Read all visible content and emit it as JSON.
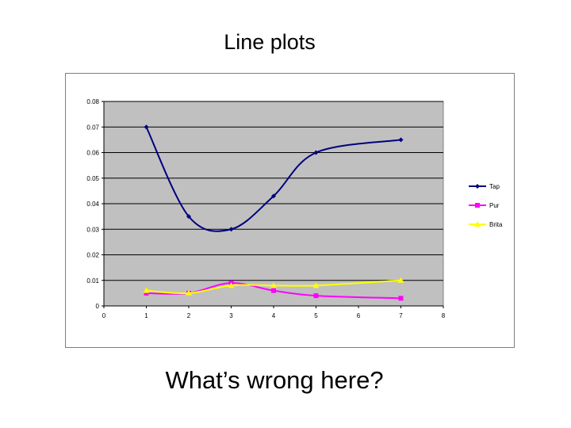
{
  "slide": {
    "title": "Line plots",
    "question": "What’s wrong here?"
  },
  "chart_data": {
    "type": "line",
    "smooth": true,
    "grid": "horizontal",
    "legend_position": "right",
    "plot_background": "#c0c0c0",
    "xlim": [
      0,
      8
    ],
    "ylim": [
      0,
      0.08
    ],
    "x_ticks": [
      "0",
      "1",
      "2",
      "3",
      "4",
      "5",
      "6",
      "7",
      "8"
    ],
    "y_ticks": [
      "0.08",
      "0.07",
      "0.06",
      "0.05",
      "0.04",
      "0.03",
      "0.02",
      "0.01",
      "0"
    ],
    "x": [
      1,
      2,
      3,
      4,
      5,
      7
    ],
    "series": [
      {
        "name": "Tap",
        "color": "#000080",
        "marker": "diamond",
        "values": [
          0.07,
          0.035,
          0.03,
          0.043,
          0.06,
          0.065
        ]
      },
      {
        "name": "Pur",
        "color": "#ff00ff",
        "marker": "square",
        "values": [
          0.005,
          0.005,
          0.009,
          0.006,
          0.004,
          0.003
        ]
      },
      {
        "name": "Brita",
        "color": "#ffff00",
        "marker": "triangle",
        "values": [
          0.006,
          0.005,
          0.008,
          0.008,
          0.008,
          0.01
        ]
      }
    ]
  }
}
